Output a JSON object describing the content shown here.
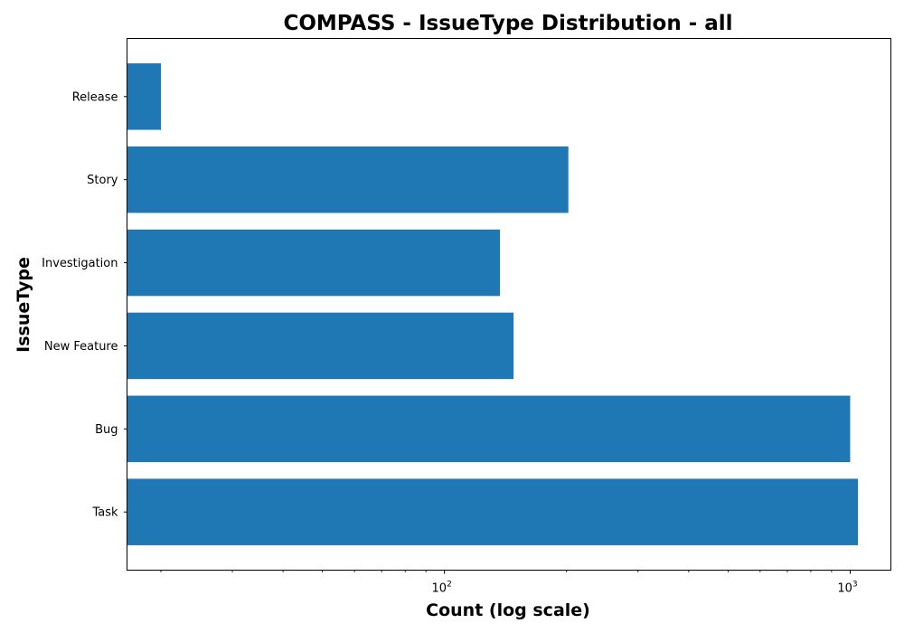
{
  "chart_data": {
    "type": "bar",
    "orientation": "horizontal",
    "title": "COMPASS - IssueType Distribution - all",
    "xlabel": "Count (log scale)",
    "ylabel": "IssueType",
    "x_scale": "log",
    "xlim": [
      16.5,
      1260
    ],
    "x_major_ticks": [
      {
        "value": 100,
        "base": "10",
        "exp": "2"
      },
      {
        "value": 1000,
        "base": "10",
        "exp": "3"
      }
    ],
    "x_minor_ticks": [
      20,
      30,
      40,
      50,
      60,
      70,
      80,
      90,
      200,
      300,
      400,
      500,
      600,
      700,
      800,
      900
    ],
    "categories": [
      "Task",
      "Bug",
      "New Feature",
      "Investigation",
      "Story",
      "Release"
    ],
    "values": [
      1045,
      1000,
      148,
      137,
      202,
      20
    ],
    "bar_color": "#1f77b4",
    "grid": false,
    "legend": "none"
  }
}
